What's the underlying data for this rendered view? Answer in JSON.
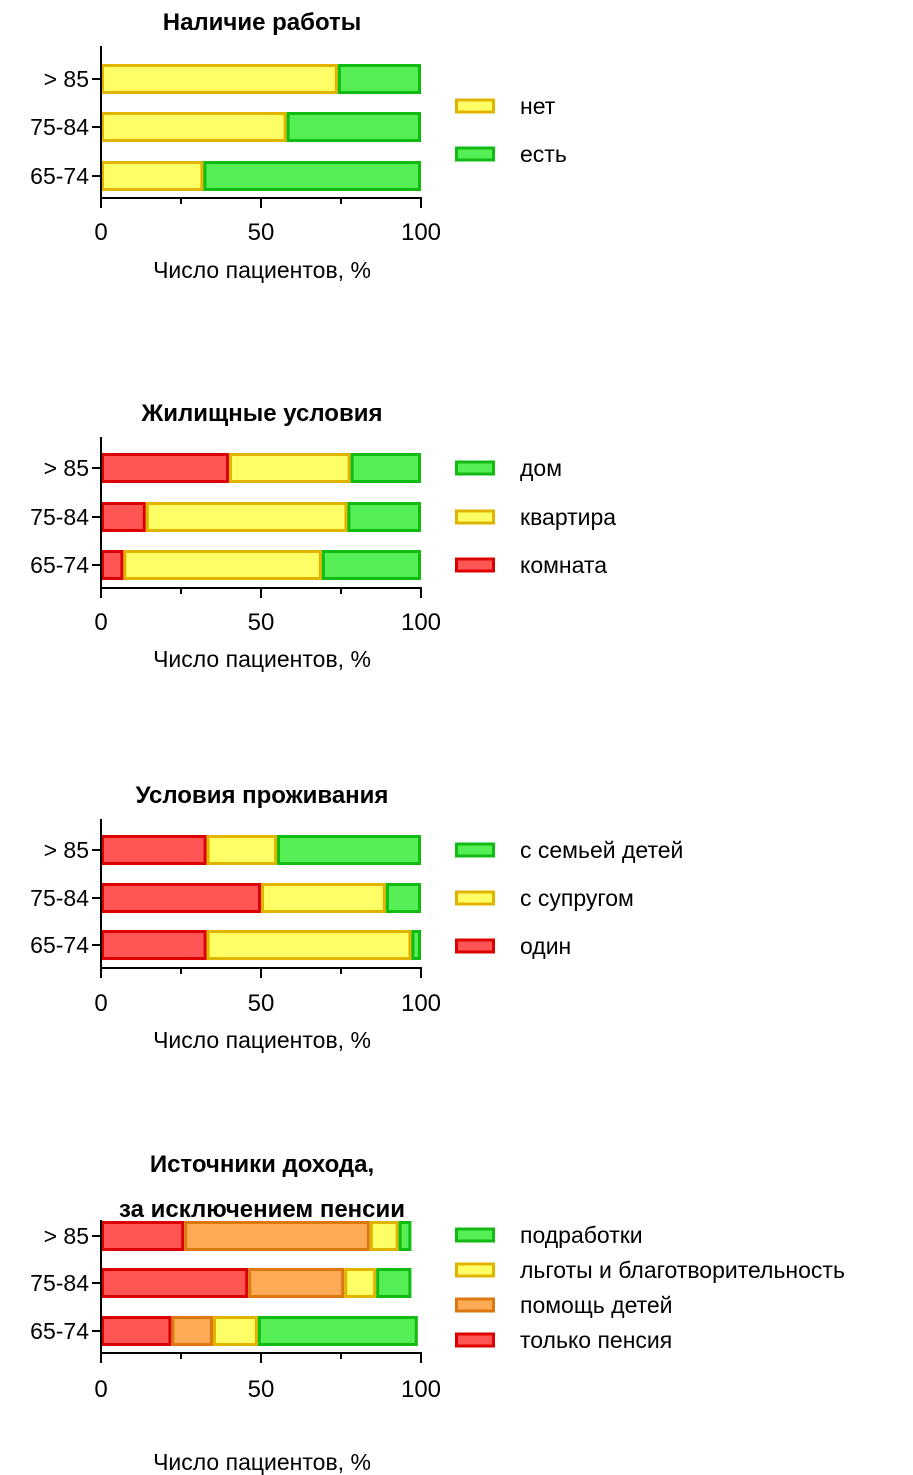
{
  "chart_data": [
    {
      "type": "bar",
      "orientation": "horizontal",
      "stacked": true,
      "title": "Наличие работы",
      "categories": [
        "65-74",
        "75-84",
        "> 85"
      ],
      "xlabel": "Число пациентов, %",
      "xlim": [
        0,
        100
      ],
      "xticks": [
        "0",
        "50",
        "100"
      ],
      "legend_position": "right",
      "series": [
        {
          "name": "нет",
          "values": [
            32,
            58,
            74
          ],
          "fill": "#FFFF66",
          "stroke": "#E1B400"
        },
        {
          "name": "есть",
          "values": [
            68,
            42,
            26
          ],
          "fill": "#55EE55",
          "stroke": "#11BB11"
        }
      ],
      "legend": [
        "нет",
        "есть"
      ]
    },
    {
      "type": "bar",
      "orientation": "horizontal",
      "stacked": true,
      "title": "Жилищные условия",
      "categories": [
        "65-74",
        "75-84",
        "> 85"
      ],
      "xlabel": "Число пациентов, %",
      "xlim": [
        0,
        100
      ],
      "xticks": [
        "0",
        "50",
        "100"
      ],
      "legend_position": "right",
      "series": [
        {
          "name": "комната",
          "values": [
            7,
            14,
            40
          ],
          "fill": "#FF5555",
          "stroke": "#DD0000"
        },
        {
          "name": "квартира",
          "values": [
            62,
            63,
            38
          ],
          "fill": "#FFFF66",
          "stroke": "#E1B400"
        },
        {
          "name": "дом",
          "values": [
            31,
            23,
            22
          ],
          "fill": "#55EE55",
          "stroke": "#11BB11"
        }
      ],
      "legend": [
        "дом",
        "квартира",
        "комната"
      ]
    },
    {
      "type": "bar",
      "orientation": "horizontal",
      "stacked": true,
      "title": "Условия проживания",
      "categories": [
        "65-74",
        "75-84",
        "> 85"
      ],
      "xlabel": "Число пациентов, %",
      "xlim": [
        0,
        100
      ],
      "xticks": [
        "0",
        "50",
        "100"
      ],
      "legend_position": "right",
      "series": [
        {
          "name": "один",
          "values": [
            33,
            50,
            33
          ],
          "fill": "#FF5555",
          "stroke": "#DD0000"
        },
        {
          "name": "с супругом",
          "values": [
            64,
            39,
            22
          ],
          "fill": "#FFFF66",
          "stroke": "#E1B400"
        },
        {
          "name": "с семьей детей",
          "values": [
            3,
            11,
            45
          ],
          "fill": "#55EE55",
          "stroke": "#11BB11"
        }
      ],
      "legend": [
        "с семьей детей",
        "с супругом",
        "один"
      ]
    },
    {
      "type": "bar",
      "orientation": "horizontal",
      "stacked": true,
      "title": [
        "Источники дохода,",
        "за исключением пенсии"
      ],
      "categories": [
        "65-74",
        "75-84",
        "> 85"
      ],
      "xlabel": "Число пациентов, %",
      "xlim": [
        0,
        100
      ],
      "xticks": [
        "0",
        "50",
        "100"
      ],
      "legend_position": "right",
      "series": [
        {
          "name": "только пенсия",
          "values": [
            22,
            46,
            26
          ],
          "fill": "#FF5555",
          "stroke": "#DD0000"
        },
        {
          "name": "помощь детей",
          "values": [
            13,
            30,
            58
          ],
          "fill": "#FFAA55",
          "stroke": "#DD7711"
        },
        {
          "name": "льготы и благотворительность",
          "values": [
            14,
            10,
            9
          ],
          "fill": "#FFFF66",
          "stroke": "#E1B400"
        },
        {
          "name": "подработки",
          "values": [
            50,
            11,
            4
          ],
          "fill": "#55EE55",
          "stroke": "#11BB11"
        }
      ],
      "legend": [
        "подработки",
        "льготы и благотворительность",
        "помощь детей",
        "только пенсия"
      ]
    }
  ]
}
